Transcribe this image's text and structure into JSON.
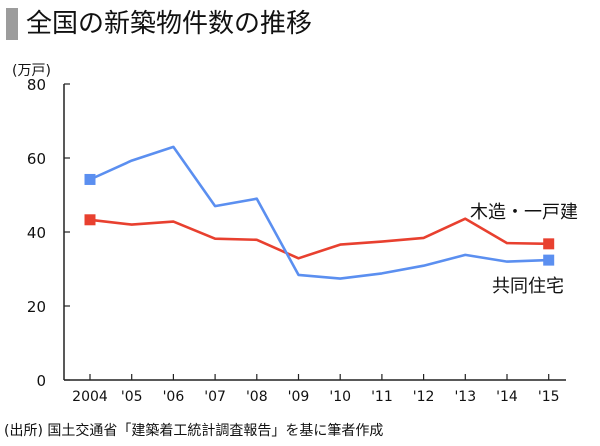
{
  "title": "全国の新築物件数の推移",
  "source": "(出所) 国土交通省「建築着工統計調査報告」を基に筆者作成",
  "chart_data": {
    "type": "line",
    "ylabel": "(万戸)",
    "ylim": [
      0,
      80
    ],
    "yticks": [
      0,
      20,
      40,
      60,
      80
    ],
    "categories": [
      "2004",
      "'05",
      "'06",
      "'07",
      "'08",
      "'09",
      "'10",
      "'11",
      "'12",
      "'13",
      "'14",
      "'15"
    ],
    "grid": false,
    "series": [
      {
        "name": "木造・一戸建",
        "color": "#e8402f",
        "values": [
          43.3,
          42.0,
          42.8,
          38.2,
          37.9,
          32.9,
          36.6,
          37.4,
          38.4,
          43.6,
          37.0,
          36.8
        ]
      },
      {
        "name": "共同住宅",
        "color": "#5b8ff0",
        "values": [
          54.2,
          59.3,
          63.0,
          47.0,
          49.0,
          28.4,
          27.4,
          28.8,
          30.9,
          33.8,
          32.0,
          32.4
        ]
      }
    ]
  }
}
